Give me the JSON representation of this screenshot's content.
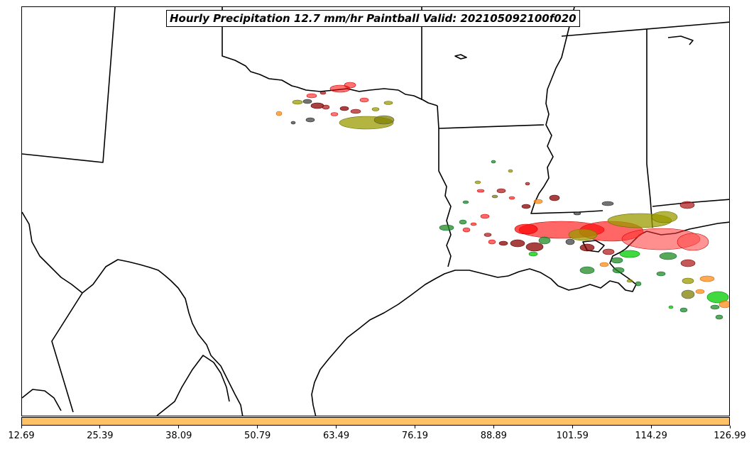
{
  "title": "Hourly Precipitation 12.7 mm/hr Paintball Valid: 202105092100f020",
  "colorbar": {
    "color": "#fec265",
    "ticks": [
      "12.69",
      "25.39",
      "38.09",
      "50.79",
      "63.49",
      "76.19",
      "88.89",
      "101.59",
      "114.29",
      "126.99"
    ]
  },
  "map": {
    "region": "Texas / Louisiana Gulf Coast",
    "boundary_color": "#000000",
    "paintball_colors": [
      "#ff0000",
      "#b22222",
      "#8b0000",
      "#9b9b00",
      "#808000",
      "#228b22",
      "#00cc00",
      "#ff8c1a",
      "#444444"
    ]
  }
}
